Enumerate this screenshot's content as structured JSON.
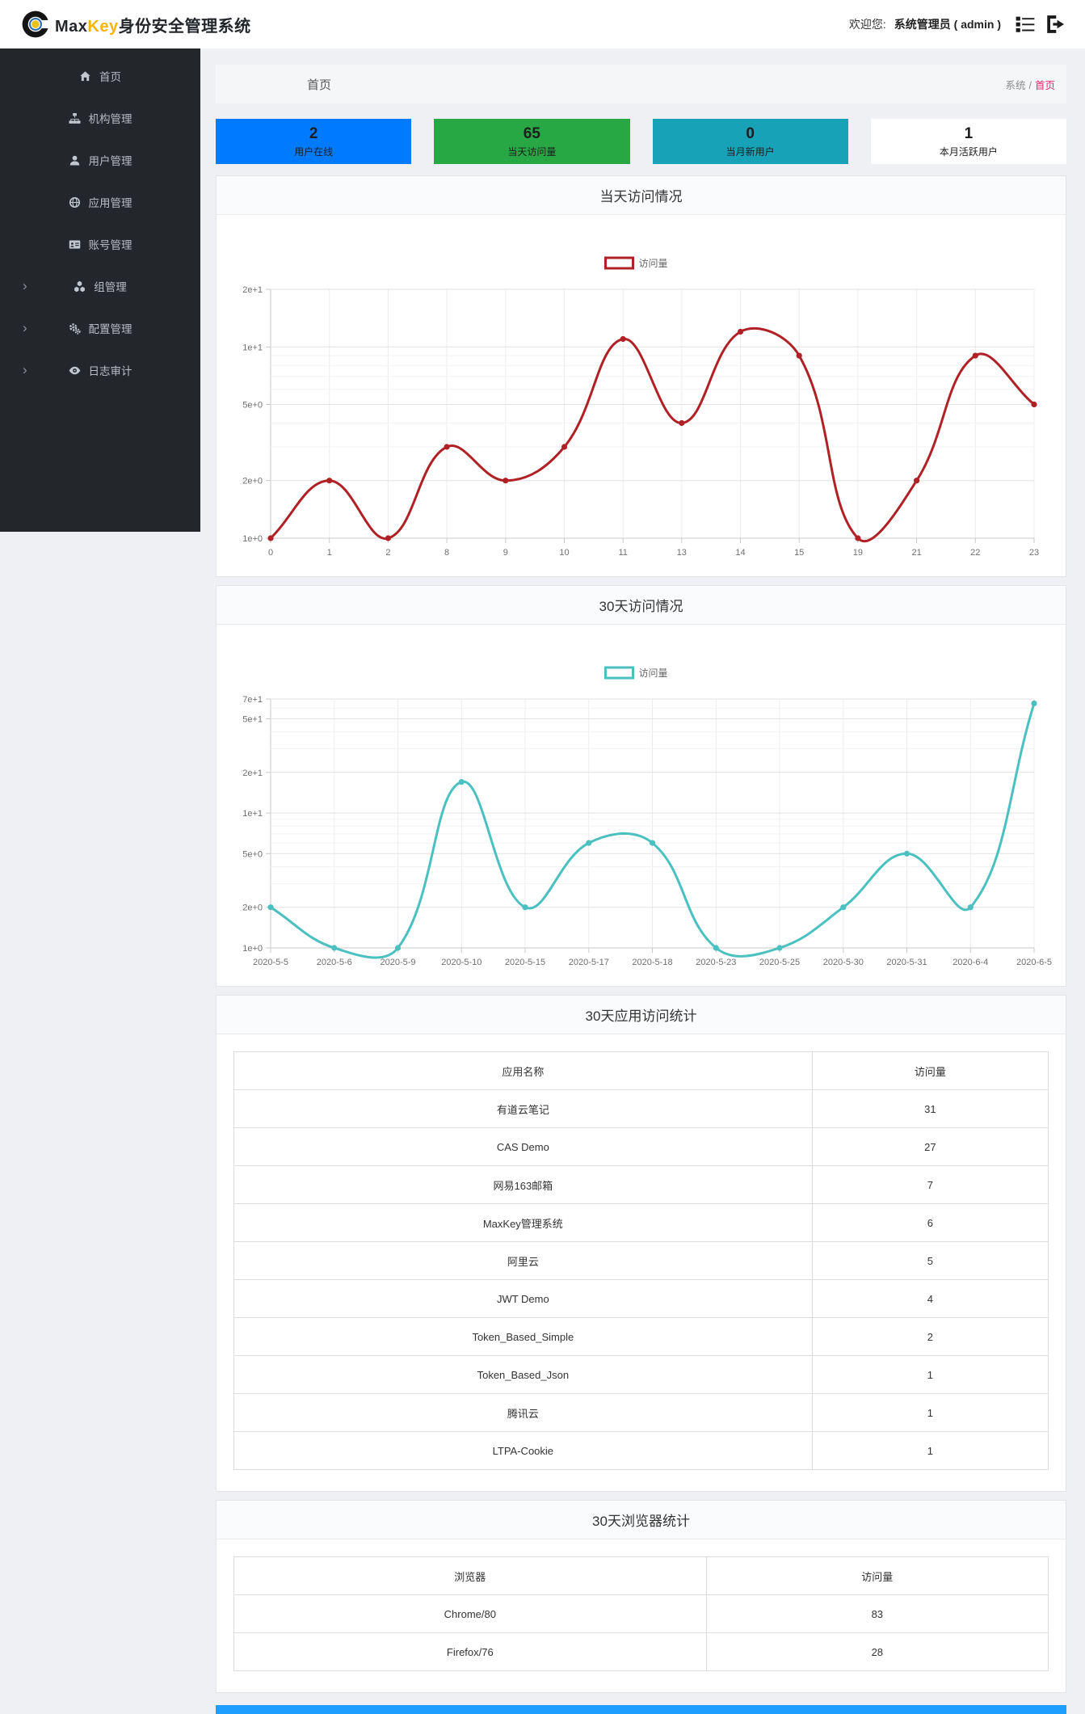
{
  "header": {
    "brand_max": "Max",
    "brand_key": "Key",
    "brand_suffix": "身份安全管理系统",
    "welcome_prefix": "欢迎您:",
    "username": "系统管理员 ( admin )"
  },
  "icons": {
    "chevron": "›"
  },
  "sidebar": {
    "items": [
      {
        "id": "home",
        "label": "首页",
        "icon": "home-icon",
        "expandable": false
      },
      {
        "id": "org",
        "label": "机构管理",
        "icon": "sitemap-icon",
        "expandable": false
      },
      {
        "id": "users",
        "label": "用户管理",
        "icon": "user-icon",
        "expandable": false
      },
      {
        "id": "apps",
        "label": "应用管理",
        "icon": "globe-icon",
        "expandable": false
      },
      {
        "id": "accounts",
        "label": "账号管理",
        "icon": "id-card-icon",
        "expandable": false
      },
      {
        "id": "groups",
        "label": "组管理",
        "icon": "cubes-icon",
        "expandable": true
      },
      {
        "id": "config",
        "label": "配置管理",
        "icon": "gears-icon",
        "expandable": true
      },
      {
        "id": "audit",
        "label": "日志审计",
        "icon": "eye-icon",
        "expandable": true
      }
    ]
  },
  "content_header": {
    "page_title": "首页",
    "breadcrumb_root": "系统",
    "breadcrumb_separator": "/",
    "breadcrumb_current": "首页",
    "breadcrumb_active_color": "#e9266d"
  },
  "stats": {
    "cards": [
      {
        "id": "online-users",
        "value": "2",
        "label": "用户在线",
        "color": "#007bff"
      },
      {
        "id": "today-visits",
        "value": "65",
        "label": "当天访问量",
        "color": "#28a745"
      },
      {
        "id": "month-new-users",
        "value": "0",
        "label": "当月新用户",
        "color": "#17a2b8"
      },
      {
        "id": "month-active-users",
        "value": "1",
        "label": "本月活跃用户",
        "color": "#ffffff"
      }
    ]
  },
  "chart_data": [
    {
      "type": "line",
      "title": "当天访问情况",
      "legend": "访问量",
      "color": "#b02126",
      "y_scale": "log",
      "ylim": [
        1,
        20
      ],
      "grid": true,
      "legend_position": "top-center",
      "categories": [
        "0",
        "1",
        "2",
        "8",
        "9",
        "10",
        "11",
        "13",
        "14",
        "15",
        "19",
        "21",
        "22",
        "23"
      ],
      "values": [
        1,
        2,
        1,
        3,
        2,
        3,
        11,
        4,
        12,
        9,
        1,
        2,
        9,
        5
      ],
      "y_ticks": [
        {
          "v": 20,
          "label": "2e+1"
        },
        {
          "v": 10,
          "label": "1e+1"
        },
        {
          "v": 5,
          "label": "5e+0"
        },
        {
          "v": 2,
          "label": "2e+0"
        },
        {
          "v": 1,
          "label": "1e+0"
        }
      ],
      "y_grid": [
        20,
        10,
        9,
        8,
        7,
        6,
        5,
        4,
        3,
        2,
        1
      ]
    },
    {
      "type": "line",
      "title": "30天访问情况",
      "legend": "访问量",
      "color": "#4bc0c0",
      "y_scale": "log",
      "ylim": [
        1,
        70
      ],
      "grid": true,
      "legend_position": "top-center",
      "categories": [
        "2020-5-5",
        "2020-5-6",
        "2020-5-9",
        "2020-5-10",
        "2020-5-15",
        "2020-5-17",
        "2020-5-18",
        "2020-5-23",
        "2020-5-25",
        "2020-5-30",
        "2020-5-31",
        "2020-6-4",
        "2020-6-5"
      ],
      "values": [
        2,
        1,
        1,
        17,
        2,
        6,
        6,
        1,
        1,
        2,
        5,
        2,
        65
      ],
      "y_ticks": [
        {
          "v": 70,
          "label": "7e+1"
        },
        {
          "v": 50,
          "label": "5e+1"
        },
        {
          "v": 20,
          "label": "2e+1"
        },
        {
          "v": 10,
          "label": "1e+1"
        },
        {
          "v": 5,
          "label": "5e+0"
        },
        {
          "v": 2,
          "label": "2e+0"
        },
        {
          "v": 1,
          "label": "1e+0"
        }
      ],
      "y_grid": [
        70,
        60,
        50,
        40,
        30,
        20,
        10,
        9,
        8,
        7,
        6,
        5,
        4,
        3,
        2,
        1
      ]
    }
  ],
  "tables": [
    {
      "title": "30天应用访问统计",
      "headers": [
        "应用名称",
        "访问量"
      ],
      "col_widths": [
        "71%",
        "29%"
      ],
      "rows": [
        [
          "有道云笔记",
          "31"
        ],
        [
          "CAS Demo",
          "27"
        ],
        [
          "网易163邮箱",
          "7"
        ],
        [
          "MaxKey管理系统",
          "6"
        ],
        [
          "阿里云",
          "5"
        ],
        [
          "JWT Demo",
          "4"
        ],
        [
          "Token_Based_Simple",
          "2"
        ],
        [
          "Token_Based_Json",
          "1"
        ],
        [
          "腾讯云",
          "1"
        ],
        [
          "LTPA-Cookie",
          "1"
        ]
      ]
    },
    {
      "title": "30天浏览器统计",
      "headers": [
        "浏览器",
        "访问量"
      ],
      "col_widths": [
        "58%",
        "42%"
      ],
      "rows": [
        [
          "Chrome/80",
          "83"
        ],
        [
          "Firefox/76",
          "28"
        ]
      ]
    }
  ],
  "footer": {
    "bar_color": "#1e9fff"
  }
}
